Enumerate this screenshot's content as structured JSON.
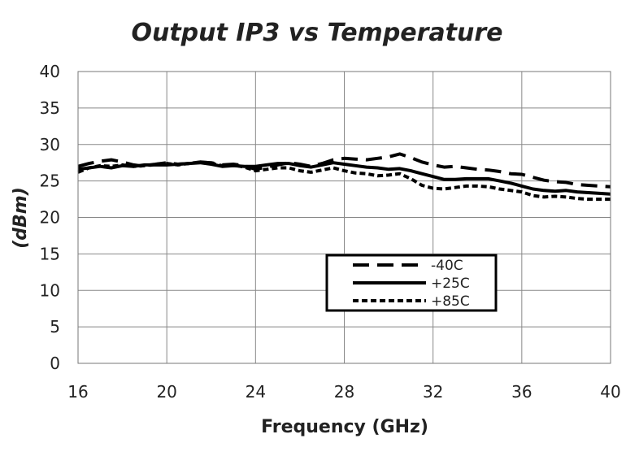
{
  "chart_data": {
    "type": "line",
    "title": "Output IP3 vs Temperature",
    "xlabel": "Frequency (GHz)",
    "ylabel": "(dBm)",
    "xlim": [
      16,
      40
    ],
    "ylim": [
      0,
      40
    ],
    "x_ticks": [
      16,
      20,
      24,
      28,
      32,
      36,
      40
    ],
    "y_ticks": [
      0,
      5,
      10,
      15,
      20,
      25,
      30,
      35,
      40
    ],
    "grid": true,
    "legend_position": "center-right",
    "series": [
      {
        "name": "-40C",
        "dash": "long-dash",
        "x": [
          16,
          16.5,
          17,
          17.5,
          18,
          18.5,
          19,
          19.5,
          20,
          20.5,
          21,
          21.5,
          22,
          22.5,
          23,
          23.5,
          24,
          24.5,
          25,
          25.5,
          26,
          26.5,
          27,
          27.5,
          28,
          28.5,
          29,
          29.5,
          30,
          30.5,
          31,
          31.5,
          32,
          32.5,
          33,
          33.5,
          34,
          34.5,
          35,
          35.5,
          36,
          36.5,
          37,
          37.5,
          38,
          38.5,
          39,
          39.5,
          40
        ],
        "y": [
          27.0,
          27.4,
          27.7,
          27.9,
          27.6,
          27.2,
          27.0,
          27.3,
          27.5,
          27.3,
          27.4,
          27.6,
          27.5,
          27.2,
          27.3,
          27.1,
          26.6,
          26.9,
          27.2,
          27.5,
          27.3,
          27.0,
          27.4,
          27.9,
          28.1,
          28.0,
          27.9,
          28.1,
          28.3,
          28.7,
          28.2,
          27.6,
          27.2,
          26.9,
          27.0,
          26.8,
          26.6,
          26.5,
          26.3,
          26.0,
          25.9,
          25.5,
          25.1,
          24.9,
          24.8,
          24.5,
          24.4,
          24.3,
          24.2
        ]
      },
      {
        "name": "+25C",
        "dash": "solid",
        "x": [
          16,
          16.5,
          17,
          17.5,
          18,
          18.5,
          19,
          19.5,
          20,
          20.5,
          21,
          21.5,
          22,
          22.5,
          23,
          23.5,
          24,
          24.5,
          25,
          25.5,
          26,
          26.5,
          27,
          27.5,
          28,
          28.5,
          29,
          29.5,
          30,
          30.5,
          31,
          31.5,
          32,
          32.5,
          33,
          33.5,
          34,
          34.5,
          35,
          35.5,
          36,
          36.5,
          37,
          37.5,
          38,
          38.5,
          39,
          39.5,
          40
        ],
        "y": [
          26.6,
          26.8,
          27.0,
          26.8,
          27.1,
          27.0,
          27.2,
          27.2,
          27.2,
          27.3,
          27.4,
          27.5,
          27.3,
          27.0,
          27.1,
          27.0,
          27.0,
          27.2,
          27.4,
          27.4,
          27.1,
          26.9,
          27.2,
          27.5,
          27.3,
          27.1,
          26.9,
          26.8,
          26.6,
          26.7,
          26.4,
          26.0,
          25.6,
          25.2,
          25.2,
          25.3,
          25.3,
          25.3,
          25.0,
          24.7,
          24.3,
          23.9,
          23.7,
          23.6,
          23.7,
          23.5,
          23.4,
          23.3,
          23.2
        ]
      },
      {
        "name": "+85C",
        "dash": "short-dash",
        "x": [
          16,
          16.5,
          17,
          17.5,
          18,
          18.5,
          19,
          19.5,
          20,
          20.5,
          21,
          21.5,
          22,
          22.5,
          23,
          23.5,
          24,
          24.5,
          25,
          25.5,
          26,
          26.5,
          27,
          27.5,
          28,
          28.5,
          29,
          29.5,
          30,
          30.5,
          31,
          31.5,
          32,
          32.5,
          33,
          33.5,
          34,
          34.5,
          35,
          35.5,
          36,
          36.5,
          37,
          37.5,
          38,
          38.5,
          39,
          39.5,
          40
        ],
        "y": [
          26.2,
          26.8,
          27.1,
          27.0,
          27.2,
          27.0,
          27.1,
          27.3,
          27.4,
          27.2,
          27.4,
          27.6,
          27.4,
          27.1,
          27.2,
          26.9,
          26.4,
          26.6,
          26.8,
          26.8,
          26.4,
          26.2,
          26.5,
          26.8,
          26.4,
          26.1,
          26.0,
          25.7,
          25.8,
          26.0,
          25.3,
          24.4,
          24.0,
          23.9,
          24.1,
          24.3,
          24.3,
          24.2,
          23.9,
          23.7,
          23.5,
          23.0,
          22.8,
          22.9,
          22.8,
          22.6,
          22.5,
          22.5,
          22.5
        ]
      }
    ]
  }
}
